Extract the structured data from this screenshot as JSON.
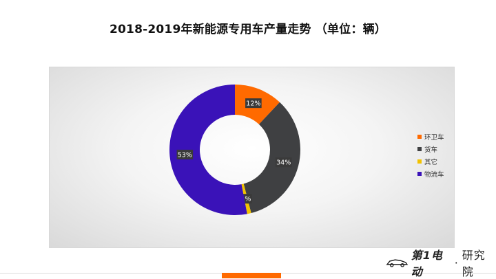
{
  "chart_data": {
    "type": "pie",
    "title": "2018-2019年新能源专用车产量走势 （单位：辆）",
    "slices": [
      {
        "name": "环卫车",
        "value": 12,
        "label": "12%",
        "color": "#ff6a00"
      },
      {
        "name": "货车",
        "value": 34,
        "label": "34%",
        "color": "#3f4042"
      },
      {
        "name": "其它",
        "value": 1,
        "label": "1%",
        "color": "#f2c200"
      },
      {
        "name": "物流车",
        "value": 53,
        "label": "53%",
        "color": "#3a12b8"
      }
    ],
    "donut": true,
    "legend_position": "right"
  },
  "brand": {
    "name": "第1电动",
    "dot": "·",
    "suffix": "研究院"
  },
  "colors": {
    "accent": "#ff6a00"
  }
}
